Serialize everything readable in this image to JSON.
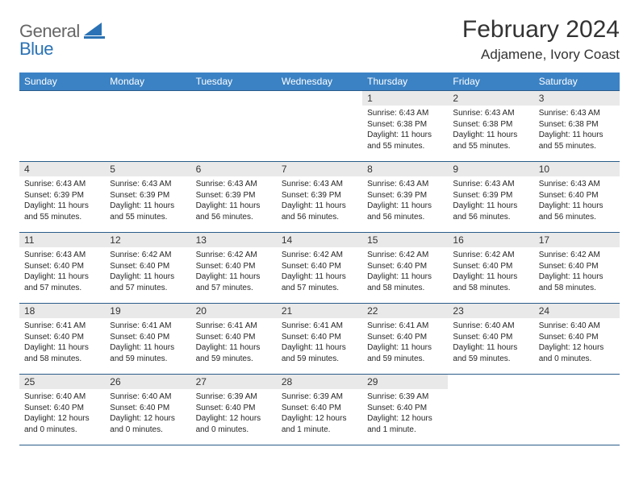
{
  "brand": {
    "word1": "General",
    "word2": "Blue"
  },
  "title": "February 2024",
  "location": "Adjamene, Ivory Coast",
  "colors": {
    "header_bg": "#3b82c4",
    "header_fg": "#ffffff",
    "daynum_bg": "#e9e9e9",
    "rule": "#2a5c8a",
    "logo_blue": "#2a72b5",
    "logo_grey": "#666666"
  },
  "typography": {
    "title_fontsize": 30,
    "location_fontsize": 17,
    "weekday_fontsize": 12,
    "daynum_fontsize": 12,
    "body_fontsize": 10
  },
  "weekdays": [
    "Sunday",
    "Monday",
    "Tuesday",
    "Wednesday",
    "Thursday",
    "Friday",
    "Saturday"
  ],
  "layout": {
    "first_weekday_index": 4,
    "days_in_month": 29
  },
  "days": {
    "1": {
      "sunrise": "6:43 AM",
      "sunset": "6:38 PM",
      "daylight": "11 hours and 55 minutes."
    },
    "2": {
      "sunrise": "6:43 AM",
      "sunset": "6:38 PM",
      "daylight": "11 hours and 55 minutes."
    },
    "3": {
      "sunrise": "6:43 AM",
      "sunset": "6:38 PM",
      "daylight": "11 hours and 55 minutes."
    },
    "4": {
      "sunrise": "6:43 AM",
      "sunset": "6:39 PM",
      "daylight": "11 hours and 55 minutes."
    },
    "5": {
      "sunrise": "6:43 AM",
      "sunset": "6:39 PM",
      "daylight": "11 hours and 55 minutes."
    },
    "6": {
      "sunrise": "6:43 AM",
      "sunset": "6:39 PM",
      "daylight": "11 hours and 56 minutes."
    },
    "7": {
      "sunrise": "6:43 AM",
      "sunset": "6:39 PM",
      "daylight": "11 hours and 56 minutes."
    },
    "8": {
      "sunrise": "6:43 AM",
      "sunset": "6:39 PM",
      "daylight": "11 hours and 56 minutes."
    },
    "9": {
      "sunrise": "6:43 AM",
      "sunset": "6:39 PM",
      "daylight": "11 hours and 56 minutes."
    },
    "10": {
      "sunrise": "6:43 AM",
      "sunset": "6:40 PM",
      "daylight": "11 hours and 56 minutes."
    },
    "11": {
      "sunrise": "6:43 AM",
      "sunset": "6:40 PM",
      "daylight": "11 hours and 57 minutes."
    },
    "12": {
      "sunrise": "6:42 AM",
      "sunset": "6:40 PM",
      "daylight": "11 hours and 57 minutes."
    },
    "13": {
      "sunrise": "6:42 AM",
      "sunset": "6:40 PM",
      "daylight": "11 hours and 57 minutes."
    },
    "14": {
      "sunrise": "6:42 AM",
      "sunset": "6:40 PM",
      "daylight": "11 hours and 57 minutes."
    },
    "15": {
      "sunrise": "6:42 AM",
      "sunset": "6:40 PM",
      "daylight": "11 hours and 58 minutes."
    },
    "16": {
      "sunrise": "6:42 AM",
      "sunset": "6:40 PM",
      "daylight": "11 hours and 58 minutes."
    },
    "17": {
      "sunrise": "6:42 AM",
      "sunset": "6:40 PM",
      "daylight": "11 hours and 58 minutes."
    },
    "18": {
      "sunrise": "6:41 AM",
      "sunset": "6:40 PM",
      "daylight": "11 hours and 58 minutes."
    },
    "19": {
      "sunrise": "6:41 AM",
      "sunset": "6:40 PM",
      "daylight": "11 hours and 59 minutes."
    },
    "20": {
      "sunrise": "6:41 AM",
      "sunset": "6:40 PM",
      "daylight": "11 hours and 59 minutes."
    },
    "21": {
      "sunrise": "6:41 AM",
      "sunset": "6:40 PM",
      "daylight": "11 hours and 59 minutes."
    },
    "22": {
      "sunrise": "6:41 AM",
      "sunset": "6:40 PM",
      "daylight": "11 hours and 59 minutes."
    },
    "23": {
      "sunrise": "6:40 AM",
      "sunset": "6:40 PM",
      "daylight": "11 hours and 59 minutes."
    },
    "24": {
      "sunrise": "6:40 AM",
      "sunset": "6:40 PM",
      "daylight": "12 hours and 0 minutes."
    },
    "25": {
      "sunrise": "6:40 AM",
      "sunset": "6:40 PM",
      "daylight": "12 hours and 0 minutes."
    },
    "26": {
      "sunrise": "6:40 AM",
      "sunset": "6:40 PM",
      "daylight": "12 hours and 0 minutes."
    },
    "27": {
      "sunrise": "6:39 AM",
      "sunset": "6:40 PM",
      "daylight": "12 hours and 0 minutes."
    },
    "28": {
      "sunrise": "6:39 AM",
      "sunset": "6:40 PM",
      "daylight": "12 hours and 1 minute."
    },
    "29": {
      "sunrise": "6:39 AM",
      "sunset": "6:40 PM",
      "daylight": "12 hours and 1 minute."
    }
  },
  "labels": {
    "sunrise": "Sunrise",
    "sunset": "Sunset",
    "daylight": "Daylight"
  }
}
